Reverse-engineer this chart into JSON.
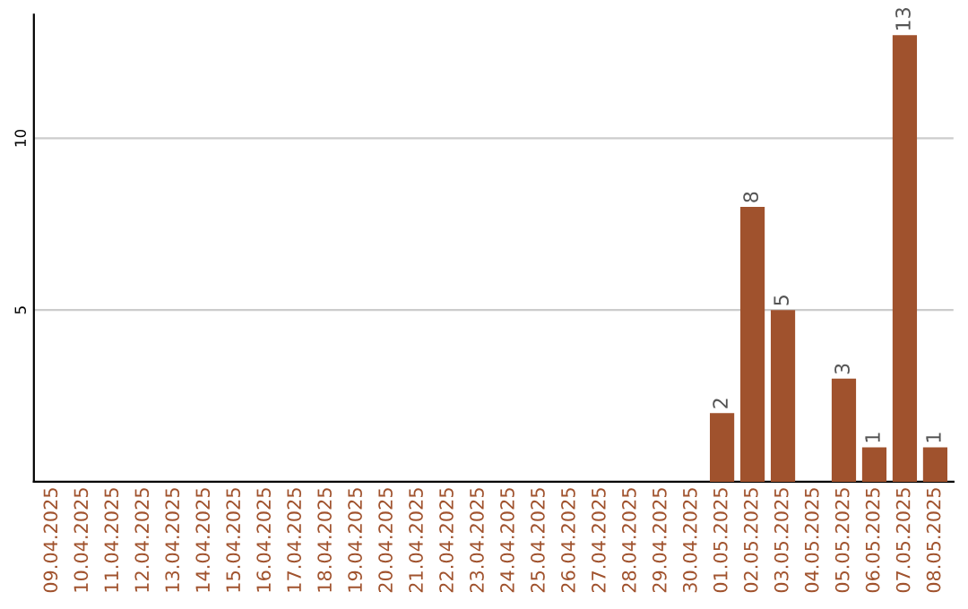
{
  "chart_data": {
    "type": "bar",
    "categories": [
      "09.04.2025",
      "10.04.2025",
      "11.04.2025",
      "12.04.2025",
      "13.04.2025",
      "14.04.2025",
      "15.04.2025",
      "16.04.2025",
      "17.04.2025",
      "18.04.2025",
      "19.04.2025",
      "20.04.2025",
      "21.04.2025",
      "22.04.2025",
      "23.04.2025",
      "24.04.2025",
      "25.04.2025",
      "26.04.2025",
      "27.04.2025",
      "28.04.2025",
      "29.04.2025",
      "30.04.2025",
      "01.05.2025",
      "02.05.2025",
      "03.05.2025",
      "04.05.2025",
      "05.05.2025",
      "06.05.2025",
      "07.05.2025",
      "08.05.2025"
    ],
    "values": [
      0,
      0,
      0,
      0,
      0,
      0,
      0,
      0,
      0,
      0,
      0,
      0,
      0,
      0,
      0,
      0,
      0,
      0,
      0,
      0,
      0,
      0,
      2,
      8,
      5,
      0,
      3,
      1,
      13,
      1
    ],
    "value_labels": [
      null,
      null,
      null,
      null,
      null,
      null,
      null,
      null,
      null,
      null,
      null,
      null,
      null,
      null,
      null,
      null,
      null,
      null,
      null,
      null,
      null,
      null,
      "2",
      "8",
      "5",
      null,
      "3",
      "1",
      "13",
      "1"
    ],
    "color": "#a0522d",
    "ylim": [
      0,
      13.6
    ],
    "yticks": [
      5,
      10
    ],
    "grid": "y",
    "legend": false
  }
}
